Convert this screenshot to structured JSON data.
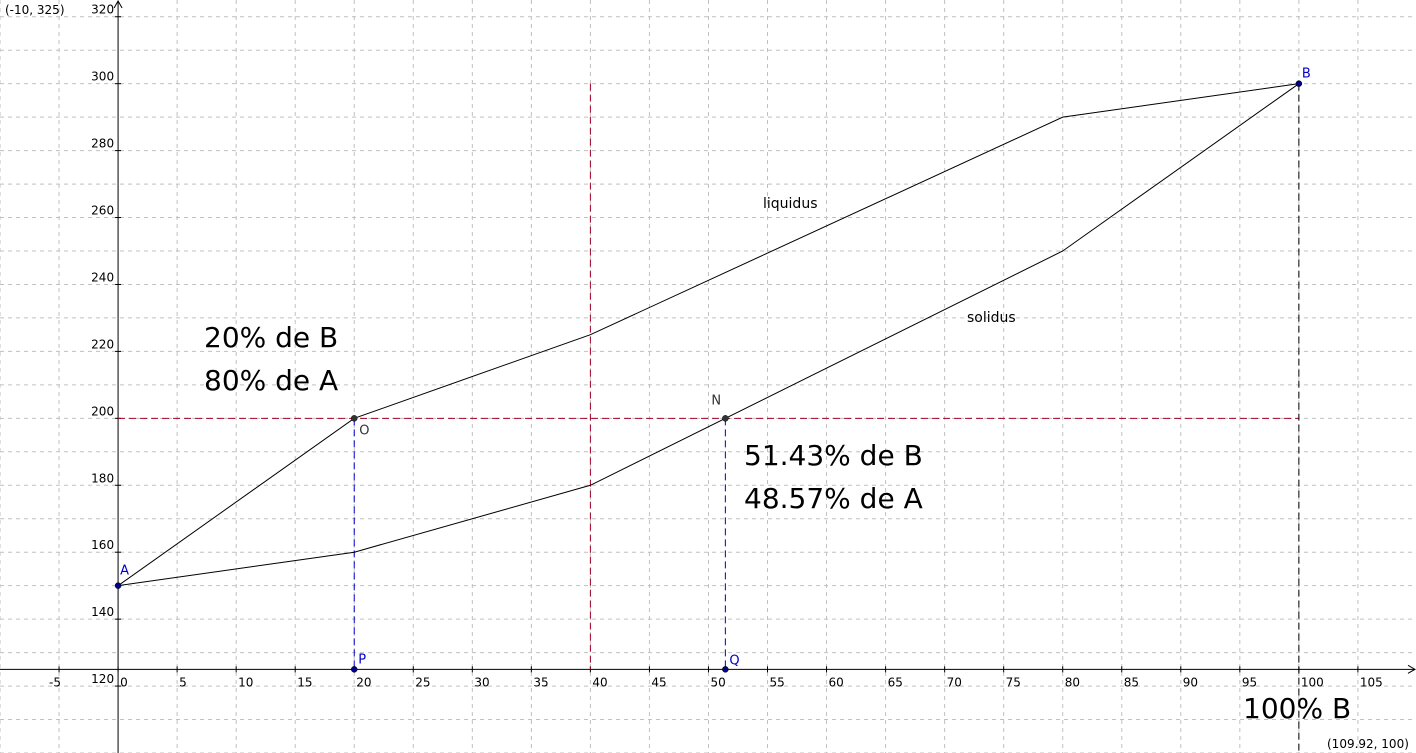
{
  "view": {
    "corner_top_left": "(-10, 325)",
    "corner_bottom_right": "(109.92, 100)"
  },
  "colors": {
    "grid": "#c0c0c0",
    "curve": "#000000",
    "point": "#00008b",
    "point_label": "#0000cc",
    "vertical_guide": "#0000cc",
    "red_guide": "#a0002a",
    "black_guide": "#000000"
  },
  "chart_data": {
    "type": "line",
    "title": "",
    "xlabel": "",
    "ylabel": "",
    "xlim": [
      -10,
      109.92
    ],
    "ylim": [
      100,
      325
    ],
    "grid": true,
    "x_axis_at_y": 125,
    "x_ticks": [
      -5,
      0,
      5,
      10,
      15,
      20,
      25,
      30,
      35,
      40,
      45,
      50,
      55,
      60,
      65,
      70,
      75,
      80,
      85,
      90,
      95,
      100,
      105
    ],
    "y_ticks": [
      120,
      140,
      160,
      180,
      200,
      220,
      240,
      260,
      280,
      300,
      320
    ],
    "series": [
      {
        "name": "liquidus",
        "x": [
          0,
          20,
          40,
          80,
          100
        ],
        "y": [
          150,
          200,
          225,
          290,
          300
        ]
      },
      {
        "name": "solidus",
        "x": [
          0,
          20,
          40,
          80,
          100
        ],
        "y": [
          150,
          160,
          180,
          250,
          300
        ]
      }
    ],
    "points": [
      {
        "label": "A",
        "x": 0,
        "y": 150,
        "color": "#0000cc"
      },
      {
        "label": "B",
        "x": 100,
        "y": 300,
        "color": "#0000cc"
      },
      {
        "label": "O",
        "x": 20,
        "y": 200,
        "color": "#000000"
      },
      {
        "label": "N",
        "x": 51.43,
        "y": 200,
        "color": "#000000"
      },
      {
        "label": "P",
        "x": 20,
        "y": 125,
        "color": "#0000cc"
      },
      {
        "label": "Q",
        "x": 51.43,
        "y": 125,
        "color": "#0000cc"
      }
    ],
    "guides": [
      {
        "from": [
          20,
          200
        ],
        "to": [
          20,
          125
        ],
        "color": "#0000cc"
      },
      {
        "from": [
          51.43,
          200
        ],
        "to": [
          51.43,
          125
        ],
        "color": "#0000cc"
      },
      {
        "from": [
          0,
          200
        ],
        "to": [
          100,
          200
        ],
        "color": "#a0002a"
      },
      {
        "from": [
          40,
          300
        ],
        "to": [
          40,
          125
        ],
        "color": "#a0002a"
      },
      {
        "from": [
          100,
          300
        ],
        "to": [
          100,
          100
        ],
        "color": "#000000"
      }
    ],
    "annotations": {
      "liquidus_label": "liquidus",
      "solidus_label": "solidus",
      "left_composition_line1": "20% de B",
      "left_composition_line2": "80% de A",
      "right_composition_line1": "51.43% de B",
      "right_composition_line2": "48.57% de A",
      "bottom_right_label": "100% B"
    }
  }
}
